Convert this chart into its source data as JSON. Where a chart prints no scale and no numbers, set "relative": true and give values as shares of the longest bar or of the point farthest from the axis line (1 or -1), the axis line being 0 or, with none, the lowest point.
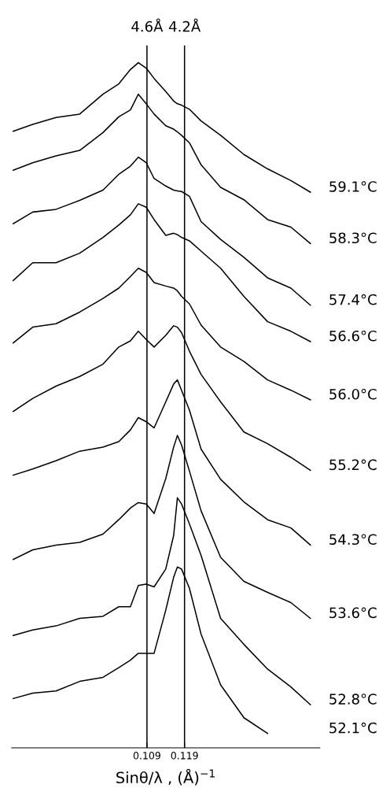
{
  "chart_data": {
    "type": "line",
    "relative": true,
    "xlabel": "Sinθ/λ , (Å)$^{−1}$",
    "x": [
      0.0734,
      0.0786,
      0.0848,
      0.0911,
      0.0973,
      0.1015,
      0.1046,
      0.1067,
      0.1088,
      0.1109,
      0.114,
      0.1161,
      0.1171,
      0.1182,
      0.1203,
      0.1234,
      0.1286,
      0.1348,
      0.1411,
      0.1473,
      0.1525
    ],
    "xlim": [
      0.073,
      0.155
    ],
    "xticks": [
      0.109,
      0.119
    ],
    "tick_labels": "x",
    "grid": false,
    "legend": false,
    "marker": "none",
    "line_style": "solid",
    "series": [
      {
        "name": "59.1°C",
        "color": "#000000",
        "values": [
          0.9,
          0.91,
          0.92,
          0.925,
          0.954,
          0.969,
          0.99,
          1.0,
          0.992,
          0.977,
          0.958,
          0.944,
          0.94,
          0.938,
          0.932,
          0.915,
          0.894,
          0.866,
          0.845,
          0.828,
          0.811
        ]
      },
      {
        "name": "58.3°C",
        "color": "#000000",
        "values": [
          0.843,
          0.854,
          0.864,
          0.872,
          0.898,
          0.921,
          0.931,
          0.954,
          0.94,
          0.925,
          0.908,
          0.903,
          0.899,
          0.894,
          0.883,
          0.851,
          0.818,
          0.8,
          0.771,
          0.76,
          0.736
        ]
      },
      {
        "name": "57.4°C",
        "color": "#000000",
        "values": [
          0.765,
          0.782,
          0.786,
          0.799,
          0.814,
          0.837,
          0.849,
          0.862,
          0.854,
          0.831,
          0.82,
          0.814,
          0.813,
          0.812,
          0.805,
          0.768,
          0.742,
          0.716,
          0.686,
          0.671,
          0.646
        ]
      },
      {
        "name": "56.6°C",
        "color": "#000000",
        "values": [
          0.682,
          0.708,
          0.708,
          0.722,
          0.745,
          0.763,
          0.778,
          0.794,
          0.789,
          0.771,
          0.748,
          0.751,
          0.749,
          0.745,
          0.74,
          0.725,
          0.7,
          0.659,
          0.622,
          0.608,
          0.593
        ]
      },
      {
        "name": "56.0°C",
        "color": "#000000",
        "values": [
          0.591,
          0.614,
          0.619,
          0.636,
          0.656,
          0.671,
          0.688,
          0.7,
          0.694,
          0.679,
          0.674,
          0.671,
          0.667,
          0.659,
          0.648,
          0.617,
          0.585,
          0.564,
          0.537,
          0.522,
          0.508
        ]
      },
      {
        "name": "55.2°C",
        "color": "#000000",
        "values": [
          0.491,
          0.51,
          0.528,
          0.542,
          0.56,
          0.585,
          0.594,
          0.608,
          0.596,
          0.585,
          0.602,
          0.616,
          0.614,
          0.606,
          0.579,
          0.545,
          0.505,
          0.461,
          0.444,
          0.424,
          0.405
        ]
      },
      {
        "name": "54.3°C",
        "color": "#000000",
        "values": [
          0.398,
          0.407,
          0.419,
          0.433,
          0.439,
          0.447,
          0.464,
          0.482,
          0.476,
          0.467,
          0.505,
          0.531,
          0.537,
          0.522,
          0.493,
          0.436,
          0.392,
          0.359,
          0.333,
          0.321,
          0.296
        ]
      },
      {
        "name": "53.6°C",
        "color": "#000000",
        "values": [
          0.275,
          0.289,
          0.296,
          0.3,
          0.312,
          0.333,
          0.35,
          0.358,
          0.356,
          0.342,
          0.393,
          0.439,
          0.456,
          0.442,
          0.404,
          0.346,
          0.278,
          0.243,
          0.227,
          0.212,
          0.189
        ]
      },
      {
        "name": "52.8°C",
        "color": "#000000",
        "values": [
          0.164,
          0.172,
          0.178,
          0.189,
          0.192,
          0.206,
          0.206,
          0.237,
          0.239,
          0.235,
          0.261,
          0.31,
          0.365,
          0.356,
          0.327,
          0.281,
          0.189,
          0.151,
          0.115,
          0.089,
          0.063
        ]
      },
      {
        "name": "52.1°C",
        "color": "#000000",
        "values": [
          0.072,
          0.08,
          0.083,
          0.097,
          0.103,
          0.117,
          0.128,
          0.138,
          0.138,
          0.138,
          0.201,
          0.249,
          0.264,
          0.261,
          0.233,
          0.166,
          0.092,
          0.044,
          0.021,
          null,
          null
        ]
      }
    ],
    "ref_lines": [
      {
        "axis": "x",
        "value": 0.109,
        "label": "4.6Å",
        "color": "#000000"
      },
      {
        "axis": "x",
        "value": 0.119,
        "label": "4.2Å",
        "color": "#000000"
      }
    ]
  }
}
